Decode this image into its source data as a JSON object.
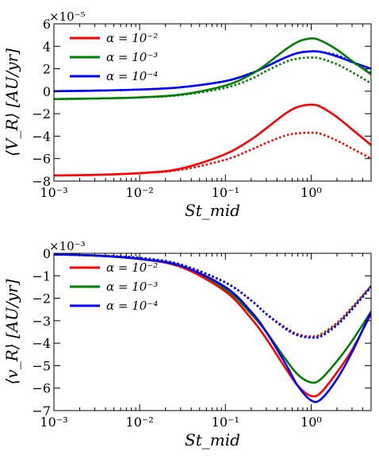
{
  "chart_data": [
    {
      "type": "line",
      "panel": "top",
      "xscale": "log",
      "xlim": [
        0.001,
        5
      ],
      "ylim": [
        -8,
        6
      ],
      "xlabel": "St_mid",
      "ylabel": "⟨V_R⟩ [AU/yr]",
      "y_multiplier": "×10⁻⁵",
      "x_ticks": [
        {
          "value": 0.001,
          "label": "10⁻³"
        },
        {
          "value": 0.01,
          "label": "10⁻²"
        },
        {
          "value": 0.1,
          "label": "10⁻¹"
        },
        {
          "value": 1,
          "label": "10⁰"
        }
      ],
      "y_ticks": [
        {
          "value": -8,
          "label": "−8"
        },
        {
          "value": -6,
          "label": "−6"
        },
        {
          "value": -4,
          "label": "−4"
        },
        {
          "value": -2,
          "label": "−2"
        },
        {
          "value": 0,
          "label": "0"
        },
        {
          "value": 2,
          "label": "2"
        },
        {
          "value": 4,
          "label": "4"
        },
        {
          "value": 6,
          "label": "6"
        }
      ],
      "legend_placement": "top-left",
      "legend": [
        {
          "label": "α = 10⁻²",
          "color": "#ff0000"
        },
        {
          "label": "α = 10⁻³",
          "color": "#008000"
        },
        {
          "label": "α = 10⁻⁴",
          "color": "#0000ff"
        }
      ],
      "series": [
        {
          "color": "#0000ff",
          "style": "solid",
          "x": [
            0.001,
            0.003,
            0.01,
            0.03,
            0.1,
            0.2,
            0.3,
            0.5,
            0.7,
            1.0,
            1.3,
            2,
            3,
            5
          ],
          "y": [
            0.0,
            0.05,
            0.15,
            0.35,
            0.9,
            1.6,
            2.2,
            3.0,
            3.4,
            3.55,
            3.5,
            3.1,
            2.6,
            2.0
          ]
        },
        {
          "color": "#0000ff",
          "style": "dotted",
          "x": [
            0.001,
            0.003,
            0.01,
            0.03,
            0.1,
            0.2,
            0.3,
            0.5,
            0.7,
            1.0,
            1.3,
            2,
            3,
            5
          ],
          "y": [
            0.0,
            0.05,
            0.15,
            0.35,
            0.9,
            1.6,
            2.2,
            3.0,
            3.4,
            3.55,
            3.5,
            3.2,
            2.6,
            1.6
          ]
        },
        {
          "color": "#008000",
          "style": "solid",
          "x": [
            0.001,
            0.003,
            0.01,
            0.03,
            0.1,
            0.2,
            0.3,
            0.5,
            0.7,
            1.0,
            1.3,
            2,
            3,
            5
          ],
          "y": [
            -0.7,
            -0.65,
            -0.55,
            -0.3,
            0.5,
            1.5,
            2.4,
            3.7,
            4.4,
            4.7,
            4.5,
            3.7,
            2.7,
            1.5
          ]
        },
        {
          "color": "#008000",
          "style": "dotted",
          "x": [
            0.001,
            0.003,
            0.01,
            0.03,
            0.1,
            0.2,
            0.3,
            0.5,
            0.7,
            1.0,
            1.3,
            2,
            3,
            5
          ],
          "y": [
            -0.7,
            -0.65,
            -0.55,
            -0.35,
            0.3,
            1.1,
            1.8,
            2.6,
            2.9,
            3.0,
            2.9,
            2.4,
            1.7,
            0.7
          ]
        },
        {
          "color": "#ff0000",
          "style": "solid",
          "x": [
            0.001,
            0.003,
            0.01,
            0.03,
            0.1,
            0.2,
            0.3,
            0.5,
            0.7,
            1.0,
            1.3,
            2,
            3,
            5
          ],
          "y": [
            -7.5,
            -7.45,
            -7.3,
            -6.9,
            -5.6,
            -4.3,
            -3.3,
            -2.0,
            -1.4,
            -1.2,
            -1.4,
            -2.3,
            -3.4,
            -4.8
          ]
        },
        {
          "color": "#ff0000",
          "style": "dotted",
          "x": [
            0.001,
            0.003,
            0.01,
            0.03,
            0.1,
            0.2,
            0.3,
            0.5,
            0.7,
            1.0,
            1.3,
            2,
            3,
            5
          ],
          "y": [
            -7.5,
            -7.45,
            -7.3,
            -7.0,
            -6.1,
            -5.2,
            -4.6,
            -3.95,
            -3.75,
            -3.7,
            -3.8,
            -4.4,
            -5.1,
            -6.0
          ]
        }
      ]
    },
    {
      "type": "line",
      "panel": "bottom",
      "xscale": "log",
      "xlim": [
        0.001,
        5
      ],
      "ylim": [
        -7,
        0
      ],
      "xlabel": "St_mid",
      "ylabel": "⟨v_R⟩ [AU/yr]",
      "y_multiplier": "×10⁻³",
      "x_ticks": [
        {
          "value": 0.001,
          "label": "10⁻³"
        },
        {
          "value": 0.01,
          "label": "10⁻²"
        },
        {
          "value": 0.1,
          "label": "10⁻¹"
        },
        {
          "value": 1,
          "label": "10⁰"
        }
      ],
      "y_ticks": [
        {
          "value": -7,
          "label": "−7"
        },
        {
          "value": -6,
          "label": "−6"
        },
        {
          "value": -5,
          "label": "−5"
        },
        {
          "value": -4,
          "label": "−4"
        },
        {
          "value": -3,
          "label": "−3"
        },
        {
          "value": -2,
          "label": "−2"
        },
        {
          "value": -1,
          "label": "−1"
        },
        {
          "value": 0,
          "label": "0"
        }
      ],
      "legend_placement": "top-left",
      "legend": [
        {
          "label": "α = 10⁻²",
          "color": "#ff0000"
        },
        {
          "label": "α = 10⁻³",
          "color": "#008000"
        },
        {
          "label": "α = 10⁻⁴",
          "color": "#0000ff"
        }
      ],
      "series": [
        {
          "color": "#008000",
          "style": "solid",
          "x": [
            0.001,
            0.003,
            0.01,
            0.03,
            0.1,
            0.2,
            0.3,
            0.5,
            0.7,
            1.0,
            1.3,
            2,
            3,
            5
          ],
          "y": [
            -0.05,
            -0.1,
            -0.25,
            -0.6,
            -1.6,
            -2.7,
            -3.5,
            -4.7,
            -5.4,
            -5.75,
            -5.6,
            -4.8,
            -3.9,
            -2.6
          ]
        },
        {
          "color": "#ff0000",
          "style": "solid",
          "x": [
            0.001,
            0.003,
            0.01,
            0.03,
            0.1,
            0.2,
            0.3,
            0.5,
            0.7,
            1.0,
            1.3,
            2,
            3,
            5
          ],
          "y": [
            -0.05,
            -0.1,
            -0.25,
            -0.6,
            -1.7,
            -2.9,
            -3.8,
            -5.1,
            -5.9,
            -6.35,
            -6.2,
            -5.3,
            -4.3,
            -2.7
          ]
        },
        {
          "color": "#0000ff",
          "style": "solid",
          "x": [
            0.001,
            0.003,
            0.01,
            0.03,
            0.1,
            0.2,
            0.3,
            0.5,
            0.7,
            1.0,
            1.3,
            2,
            3,
            5
          ],
          "y": [
            -0.05,
            -0.1,
            -0.25,
            -0.55,
            -1.5,
            -2.6,
            -3.5,
            -4.9,
            -5.9,
            -6.55,
            -6.5,
            -5.6,
            -4.4,
            -2.6
          ]
        },
        {
          "color": "#ff0000",
          "style": "dotted",
          "x": [
            0.001,
            0.003,
            0.01,
            0.03,
            0.1,
            0.2,
            0.3,
            0.5,
            0.7,
            1.0,
            1.3,
            2,
            3,
            5
          ],
          "y": [
            -0.05,
            -0.1,
            -0.2,
            -0.5,
            -1.3,
            -2.1,
            -2.7,
            -3.3,
            -3.6,
            -3.7,
            -3.6,
            -3.1,
            -2.4,
            -1.45
          ]
        },
        {
          "color": "#008000",
          "style": "dotted",
          "x": [
            0.001,
            0.003,
            0.01,
            0.03,
            0.1,
            0.2,
            0.3,
            0.5,
            0.7,
            1.0,
            1.3,
            2,
            3,
            5
          ],
          "y": [
            -0.05,
            -0.1,
            -0.2,
            -0.5,
            -1.3,
            -2.1,
            -2.7,
            -3.35,
            -3.65,
            -3.75,
            -3.65,
            -3.15,
            -2.45,
            -1.45
          ]
        },
        {
          "color": "#0000ff",
          "style": "dotted",
          "x": [
            0.001,
            0.003,
            0.01,
            0.03,
            0.1,
            0.2,
            0.3,
            0.5,
            0.7,
            1.0,
            1.3,
            2,
            3,
            5
          ],
          "y": [
            -0.05,
            -0.1,
            -0.2,
            -0.5,
            -1.3,
            -2.1,
            -2.7,
            -3.35,
            -3.65,
            -3.75,
            -3.7,
            -3.2,
            -2.5,
            -1.5
          ]
        }
      ]
    }
  ]
}
